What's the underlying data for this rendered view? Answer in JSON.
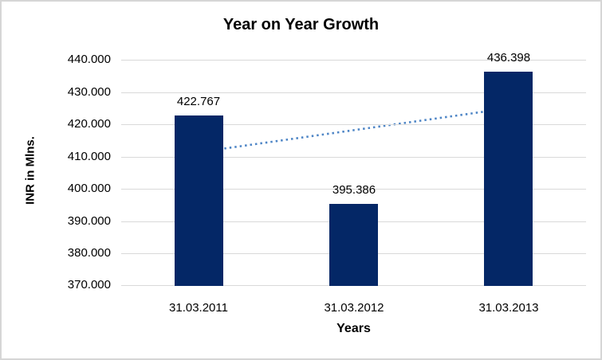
{
  "chart": {
    "title": "Year on Year Growth",
    "y_axis_title": "INR in Mlns.",
    "x_axis_title": "Years"
  },
  "chart_data": {
    "type": "bar",
    "title": "Year on Year Growth",
    "xlabel": "Years",
    "ylabel": "INR in Mlns.",
    "categories": [
      "31.03.2011",
      "31.03.2012",
      "31.03.2013"
    ],
    "values": [
      422.767,
      395.386,
      436.398
    ],
    "data_labels": [
      "422.767",
      "395.386",
      "436.398"
    ],
    "ylim": [
      370,
      440
    ],
    "ytick_step": 10,
    "ytick_labels": [
      "370.000",
      "380.000",
      "390.000",
      "400.000",
      "410.000",
      "420.000",
      "430.000",
      "440.000"
    ],
    "grid": true,
    "legend": "none",
    "colors": {
      "bar": "#042766",
      "trendline": "#4f86c6",
      "gridline": "#d9d9d9",
      "text": "#000000",
      "border": "#d6d6d6"
    },
    "trendline": {
      "type": "linear",
      "style": "dotted",
      "start_value": 411.4,
      "end_value": 425.0
    }
  }
}
